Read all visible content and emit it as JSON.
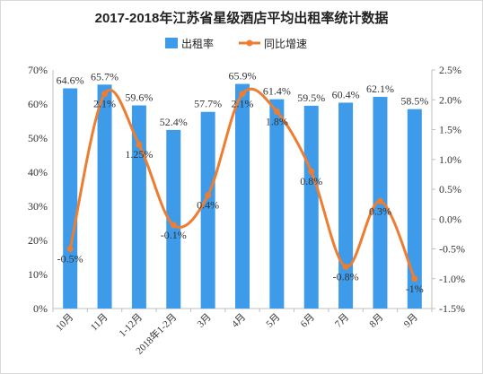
{
  "chart_data": {
    "type": "bar+line",
    "title": "2017-2018年江苏省星级酒店平均出租率统计数据",
    "categories": [
      "10月",
      "11月",
      "1-12月",
      "2018年1-2月",
      "3月",
      "4月",
      "5月",
      "6月",
      "7月",
      "8月",
      "9月"
    ],
    "series": [
      {
        "name": "出租率",
        "type": "bar",
        "axis": "left",
        "color": "#3d9be9",
        "values": [
          64.6,
          65.7,
          59.6,
          52.4,
          57.7,
          65.9,
          61.4,
          59.5,
          60.4,
          62.1,
          58.5
        ],
        "labels": [
          "64.6%",
          "65.7%",
          "59.6%",
          "52.4%",
          "57.7%",
          "65.9%",
          "61.4%",
          "59.5%",
          "60.4%",
          "62.1%",
          "58.5%"
        ]
      },
      {
        "name": "同比增速",
        "type": "line",
        "axis": "right",
        "color": "#ed7d31",
        "values": [
          -0.5,
          2.1,
          1.25,
          -0.1,
          0.4,
          2.1,
          1.8,
          0.8,
          -0.8,
          0.3,
          -1.0
        ],
        "labels": [
          "-0.5%",
          "2.1%",
          "1.25%",
          "-0.1%",
          "0.4%",
          "2.1%",
          "1.8%",
          "0.8%",
          "-0.8%",
          "0.3%",
          "-1%"
        ]
      }
    ],
    "y_left": {
      "ylim": [
        0,
        70
      ],
      "ticks": [
        0,
        10,
        20,
        30,
        40,
        50,
        60,
        70
      ],
      "tick_labels": [
        "0%",
        "10%",
        "20%",
        "30%",
        "40%",
        "50%",
        "60%",
        "70%"
      ]
    },
    "y_right": {
      "ylim": [
        -1.5,
        2.5
      ],
      "ticks": [
        -1.5,
        -1.0,
        -0.5,
        0.0,
        0.5,
        1.0,
        1.5,
        2.0,
        2.5
      ],
      "tick_labels": [
        "-1.5%",
        "-1.0%",
        "-0.5%",
        "0.0%",
        "0.5%",
        "1.0%",
        "1.5%",
        "2.0%",
        "2.5%"
      ]
    },
    "grid": false,
    "legend": "top-center"
  }
}
